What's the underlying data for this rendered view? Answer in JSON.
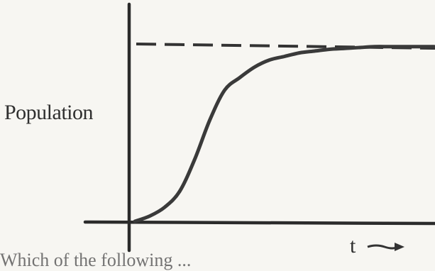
{
  "chart_data": {
    "type": "line",
    "title": "",
    "xlabel": "t",
    "ylabel": "Population",
    "grid": false,
    "legend": "none",
    "axis_line_color": "#2b2b2b",
    "curve_color": "#3a3a3a",
    "series": [
      {
        "x": [
          0,
          0.05,
          0.1,
          0.15,
          0.2,
          0.25,
          0.3,
          0.35,
          0.4,
          0.45,
          0.5,
          0.55,
          0.6,
          0.65,
          0.7,
          0.75,
          0.8,
          0.85,
          0.9,
          0.95,
          1.0
        ],
        "y": [
          0,
          0.03,
          0.08,
          0.17,
          0.35,
          0.57,
          0.74,
          0.81,
          0.87,
          0.91,
          0.93,
          0.95,
          0.96,
          0.97,
          0.975,
          0.98,
          0.985,
          0.985,
          0.985,
          0.985,
          0.985
        ]
      }
    ],
    "asymptote": {
      "y": 1.0,
      "style": "dashed",
      "label": ""
    },
    "xlim": [
      0,
      1
    ],
    "ylim": [
      0,
      1
    ]
  },
  "cutoff_text": "Which of the following ..."
}
